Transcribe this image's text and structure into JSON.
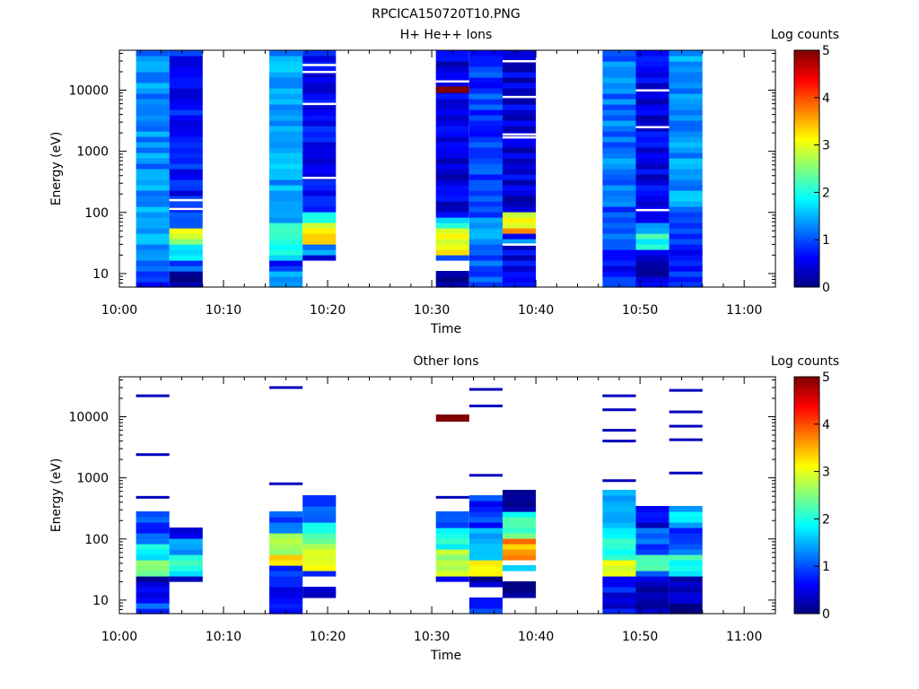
{
  "figure_title": "RPCICA150720T10.PNG",
  "chart_data": [
    {
      "type": "heatmap",
      "title": "H+ He++ Ions",
      "xlabel": "Time",
      "ylabel": "Energy (eV)",
      "y_scale": "log",
      "ylim": [
        6,
        45000
      ],
      "x_range_minutes": [
        0,
        63
      ],
      "x_ticks": [
        "10:00",
        "10:10",
        "10:20",
        "10:30",
        "10:40",
        "10:50",
        "11:00"
      ],
      "y_ticks": [
        "10",
        "100",
        "1000",
        "10000"
      ],
      "colorbar": {
        "label": "Log counts",
        "range": [
          0,
          5
        ],
        "ticks": [
          "0",
          "1",
          "2",
          "3",
          "4",
          "5"
        ],
        "colormap": "jet"
      },
      "columns": [
        {
          "t_start": 1.6,
          "t_end": 4.8,
          "e_min": 6,
          "e_max": 45000,
          "low_band": [
            [
              6,
              12,
              0.8
            ],
            [
              12,
              28,
              1.2
            ],
            [
              28,
              60,
              1.6
            ],
            [
              60,
              120,
              1.4
            ]
          ],
          "bg_level": 1.3,
          "white_lines": []
        },
        {
          "t_start": 4.8,
          "t_end": 8.0,
          "e_min": 6,
          "e_max": 45000,
          "low_band": [
            [
              6,
              10,
              0.2
            ],
            [
              10,
              15,
              1.0
            ],
            [
              15,
              28,
              1.6
            ],
            [
              28,
              60,
              2.8
            ],
            [
              60,
              100,
              1.0
            ]
          ],
          "bg_level": 0.7,
          "white_lines": [
            115,
            160
          ]
        },
        {
          "t_start": 14.4,
          "t_end": 17.6,
          "e_min": 6,
          "e_max": 45000,
          "low_band": [
            [
              6,
              10,
              1.3
            ],
            [
              10,
              18,
              0.8
            ],
            [
              18,
              40,
              1.8
            ],
            [
              40,
              70,
              2.4
            ],
            [
              70,
              100,
              1.6
            ]
          ],
          "bg_level": 1.4,
          "white_lines": []
        },
        {
          "t_start": 17.6,
          "t_end": 20.8,
          "e_min": 15,
          "e_max": 45000,
          "low_band": [
            [
              15,
              22,
              0.2
            ],
            [
              22,
              30,
              1.4
            ],
            [
              30,
              70,
              3.1
            ],
            [
              70,
              110,
              2.2
            ]
          ],
          "bg_level": 0.6,
          "white_lines": [
            370,
            6000,
            20000,
            26000
          ]
        },
        {
          "t_start": 30.4,
          "t_end": 33.6,
          "e_min": 6,
          "e_max": 45000,
          "low_band": [
            [
              6,
              10,
              0.1
            ],
            [
              15,
              22,
              0.8
            ],
            [
              22,
              60,
              3.0
            ],
            [
              60,
              90,
              1.9
            ]
          ],
          "bg_level": 0.45,
          "white_lines": [
            14000
          ],
          "hot_band": [
            9000,
            11500,
            5.0
          ],
          "gap": [
            10,
            15
          ]
        },
        {
          "t_start": 33.6,
          "t_end": 36.8,
          "e_min": 6,
          "e_max": 45000,
          "low_band": [
            [
              6,
              30,
              1.0
            ],
            [
              30,
              80,
              1.3
            ]
          ],
          "bg_level": 0.9,
          "white_lines": []
        },
        {
          "t_start": 36.8,
          "t_end": 40.0,
          "e_min": 6,
          "e_max": 45000,
          "low_band": [
            [
              6,
              28,
              0.5
            ],
            [
              32,
              38,
              1.6
            ],
            [
              42,
              60,
              3.8
            ],
            [
              60,
              110,
              3.0
            ]
          ],
          "bg_level": 0.45,
          "white_lines": [
            30,
            1700,
            1900,
            7800,
            30000
          ]
        },
        {
          "t_start": 46.4,
          "t_end": 49.6,
          "e_min": 6,
          "e_max": 45000,
          "low_band": [
            [
              6,
              25,
              0.7
            ],
            [
              25,
              60,
              1.0
            ],
            [
              60,
              120,
              0.9
            ]
          ],
          "bg_level": 1.2,
          "white_lines": []
        },
        {
          "t_start": 49.6,
          "t_end": 52.8,
          "e_min": 6,
          "e_max": 45000,
          "low_band": [
            [
              6,
              25,
              0.4
            ],
            [
              25,
              45,
              2.0
            ],
            [
              45,
              70,
              1.5
            ],
            [
              70,
              110,
              0.6
            ]
          ],
          "bg_level": 0.5,
          "white_lines": [
            110,
            2500,
            10000
          ]
        },
        {
          "t_start": 52.8,
          "t_end": 56.0,
          "e_min": 6,
          "e_max": 45000,
          "low_band": [
            [
              6,
              30,
              0.8
            ],
            [
              30,
              100,
              1.0
            ]
          ],
          "bg_level": 1.4,
          "white_lines": []
        }
      ]
    },
    {
      "type": "heatmap",
      "title": "Other Ions",
      "xlabel": "Time",
      "ylabel": "Energy (eV)",
      "y_scale": "log",
      "ylim": [
        6,
        45000
      ],
      "x_range_minutes": [
        0,
        63
      ],
      "x_ticks": [
        "10:00",
        "10:10",
        "10:20",
        "10:30",
        "10:40",
        "10:50",
        "11:00"
      ],
      "y_ticks": [
        "10",
        "100",
        "1000",
        "10000"
      ],
      "colorbar": {
        "label": "Log counts",
        "range": [
          0,
          5
        ],
        "ticks": [
          "0",
          "1",
          "2",
          "3",
          "4",
          "5"
        ],
        "colormap": "jet"
      },
      "columns": [
        {
          "t_start": 1.6,
          "t_end": 4.8,
          "e_min": 6,
          "e_max": 280,
          "profile": [
            [
              6,
              12,
              0.9
            ],
            [
              12,
              20,
              0.5
            ],
            [
              20,
              26,
              0.2
            ],
            [
              26,
              45,
              2.6
            ],
            [
              45,
              80,
              2.0
            ],
            [
              80,
              280,
              1.0
            ]
          ],
          "lines": [
            [
              480,
              0.3
            ],
            [
              2400,
              0.3
            ],
            [
              22000,
              0.3
            ]
          ]
        },
        {
          "t_start": 4.8,
          "t_end": 8.0,
          "e_min": 20,
          "e_max": 160,
          "profile": [
            [
              20,
              26,
              0.1
            ],
            [
              26,
              55,
              2.0
            ],
            [
              55,
              100,
              1.5
            ],
            [
              100,
              160,
              0.3
            ]
          ],
          "lines": []
        },
        {
          "t_start": 14.4,
          "t_end": 17.6,
          "e_min": 6,
          "e_max": 300,
          "profile": [
            [
              6,
              25,
              0.6
            ],
            [
              25,
              40,
              1.0
            ],
            [
              40,
              55,
              3.5
            ],
            [
              55,
              120,
              2.6
            ],
            [
              120,
              300,
              1.0
            ]
          ],
          "lines": [
            [
              800,
              0.3
            ],
            [
              30000,
              0.3
            ]
          ]
        },
        {
          "t_start": 17.6,
          "t_end": 20.8,
          "e_min": 10,
          "e_max": 520,
          "profile": [
            [
              10,
              15,
              0.2
            ],
            [
              25,
              30,
              0.8
            ],
            [
              30,
              80,
              3.0
            ],
            [
              80,
              200,
              2.2
            ],
            [
              200,
              520,
              0.9
            ]
          ],
          "lines": []
        },
        {
          "t_start": 30.4,
          "t_end": 33.6,
          "e_min": 20,
          "e_max": 300,
          "profile": [
            [
              20,
              25,
              0.3
            ],
            [
              25,
              70,
              2.8
            ],
            [
              70,
              150,
              2.0
            ],
            [
              150,
              300,
              1.0
            ]
          ],
          "lines": [
            [
              480,
              0.3
            ],
            [
              9500,
              5.0
            ]
          ]
        },
        {
          "t_start": 33.6,
          "t_end": 36.8,
          "e_min": 6,
          "e_max": 550,
          "profile": [
            [
              6,
              10,
              0.8
            ],
            [
              15,
              25,
              0.2
            ],
            [
              25,
              50,
              3.0
            ],
            [
              50,
              150,
              1.5
            ],
            [
              150,
              550,
              0.8
            ]
          ],
          "lines": [
            [
              1100,
              0.3
            ],
            [
              15000,
              0.3
            ],
            [
              28000,
              0.3
            ]
          ]
        },
        {
          "t_start": 36.8,
          "t_end": 40.0,
          "e_min": 10,
          "e_max": 600,
          "profile": [
            [
              10,
              20,
              0.2
            ],
            [
              32,
              40,
              1.6
            ],
            [
              42,
              110,
              3.6
            ],
            [
              110,
              300,
              2.2
            ],
            [
              300,
              600,
              0.3
            ]
          ],
          "lines": []
        },
        {
          "t_start": 46.4,
          "t_end": 49.6,
          "e_min": 6,
          "e_max": 650,
          "profile": [
            [
              6,
              25,
              0.6
            ],
            [
              25,
              45,
              3.0
            ],
            [
              45,
              100,
              2.0
            ],
            [
              100,
              650,
              1.6
            ]
          ],
          "lines": [
            [
              900,
              0.3
            ],
            [
              4000,
              0.3
            ],
            [
              6000,
              0.3
            ],
            [
              13000,
              0.3
            ],
            [
              22000,
              0.3
            ]
          ]
        },
        {
          "t_start": 49.6,
          "t_end": 52.8,
          "e_min": 6,
          "e_max": 320,
          "profile": [
            [
              6,
              20,
              0.1
            ],
            [
              20,
              30,
              0.8
            ],
            [
              30,
              60,
              2.0
            ],
            [
              60,
              140,
              1.0
            ],
            [
              140,
              320,
              0.5
            ]
          ],
          "lines": []
        },
        {
          "t_start": 52.8,
          "t_end": 56.0,
          "e_min": 6,
          "e_max": 380,
          "profile": [
            [
              6,
              25,
              0.2
            ],
            [
              25,
              60,
              2.0
            ],
            [
              60,
              150,
              1.0
            ],
            [
              150,
              380,
              1.6
            ]
          ],
          "lines": [
            [
              1200,
              0.3
            ],
            [
              4200,
              0.3
            ],
            [
              7000,
              0.3
            ],
            [
              12000,
              0.3
            ],
            [
              27000,
              0.3
            ]
          ]
        }
      ]
    }
  ]
}
